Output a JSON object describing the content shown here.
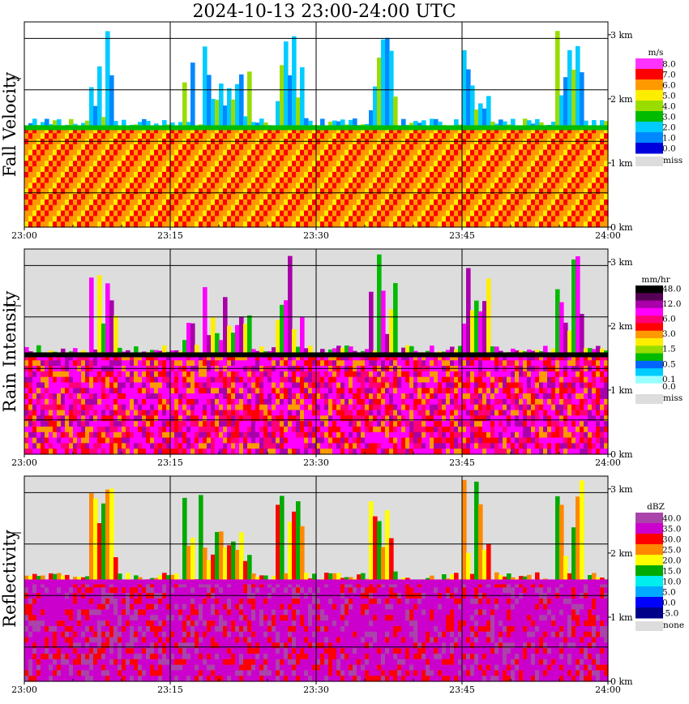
{
  "title": "2024-10-13   23:00-24:00 UTC",
  "chart_data": [
    {
      "type": "heatmap",
      "name": "Fall Velocity",
      "ylabel": "Fall Velocity",
      "xticks": [
        "23:00",
        "23:15",
        "23:30",
        "23:45",
        "24:00"
      ],
      "yticks": [
        "0 km",
        "1 km",
        "2 km",
        "3 km"
      ],
      "ylim_km": [
        0,
        3.2
      ],
      "grid": true,
      "legend": {
        "unit": "m/s",
        "entries": [
          {
            "label": "8.0",
            "color": "#ff33ff"
          },
          {
            "label": "7.0",
            "color": "#ff0000"
          },
          {
            "label": "6.0",
            "color": "#ff9900"
          },
          {
            "label": "5.0",
            "color": "#ffee00"
          },
          {
            "label": "4.0",
            "color": "#99dd00"
          },
          {
            "label": "3.0",
            "color": "#00bb00"
          },
          {
            "label": "2.0",
            "color": "#00ccff"
          },
          {
            "label": "1.0",
            "color": "#0088ff"
          },
          {
            "label": "0.0",
            "color": "#0000dd"
          }
        ],
        "miss": {
          "label": "miss",
          "color": "#dddddd"
        }
      },
      "rain_top_km": 1.55,
      "background": "#ffffff"
    },
    {
      "type": "heatmap",
      "name": "Rain Intensity",
      "ylabel": "Rain Intensity",
      "xticks": [
        "23:00",
        "23:15",
        "23:30",
        "23:45",
        "24:00"
      ],
      "yticks": [
        "0 km",
        "1 km",
        "2 km",
        "3 km"
      ],
      "ylim_km": [
        0,
        3.2
      ],
      "grid": true,
      "legend": {
        "unit": "mm/hr",
        "entries": [
          {
            "label": "48.0",
            "color": "#000000"
          },
          {
            "label": "",
            "color": "#550055"
          },
          {
            "label": "12.0",
            "color": "#aa00aa"
          },
          {
            "label": "",
            "color": "#ff00ff"
          },
          {
            "label": "6.0",
            "color": "#ff0077"
          },
          {
            "label": "",
            "color": "#ff0000"
          },
          {
            "label": "3.0",
            "color": "#ff9900"
          },
          {
            "label": "",
            "color": "#ffee00"
          },
          {
            "label": "1.5",
            "color": "#99dd00"
          },
          {
            "label": "",
            "color": "#00bb00"
          },
          {
            "label": "0.5",
            "color": "#0066ff"
          },
          {
            "label": "",
            "color": "#00ccff"
          },
          {
            "label": "0.1",
            "color": "#99ffff"
          },
          {
            "label": "0.0",
            "color": "#ffffff"
          }
        ],
        "miss": {
          "label": "miss",
          "color": "#dddddd"
        }
      },
      "rain_top_km": 1.55,
      "background": "#dddddd"
    },
    {
      "type": "heatmap",
      "name": "Reflectivity",
      "ylabel": "Reflectivity",
      "xticks": [
        "23:00",
        "23:15",
        "23:30",
        "23:45",
        "24:00"
      ],
      "yticks": [
        "0 km",
        "1 km",
        "2 km",
        "3 km"
      ],
      "ylim_km": [
        0,
        3.2
      ],
      "grid": true,
      "legend": {
        "unit": "dBZ",
        "entries": [
          {
            "label": "40.0",
            "color": "#aa44aa"
          },
          {
            "label": "35.0",
            "color": "#cc00cc"
          },
          {
            "label": "30.0",
            "color": "#ff0000"
          },
          {
            "label": "25.0",
            "color": "#ff8800"
          },
          {
            "label": "20.0",
            "color": "#ffff00"
          },
          {
            "label": "15.0",
            "color": "#00aa00"
          },
          {
            "label": "10.0",
            "color": "#00eeee"
          },
          {
            "label": "5.0",
            "color": "#00aaff"
          },
          {
            "label": "0.0",
            "color": "#0000ff"
          },
          {
            "label": "-5.0",
            "color": "#000088"
          }
        ],
        "miss": {
          "label": "none",
          "color": "#dddddd"
        }
      },
      "rain_top_km": 1.55,
      "background": "#dddddd"
    }
  ]
}
